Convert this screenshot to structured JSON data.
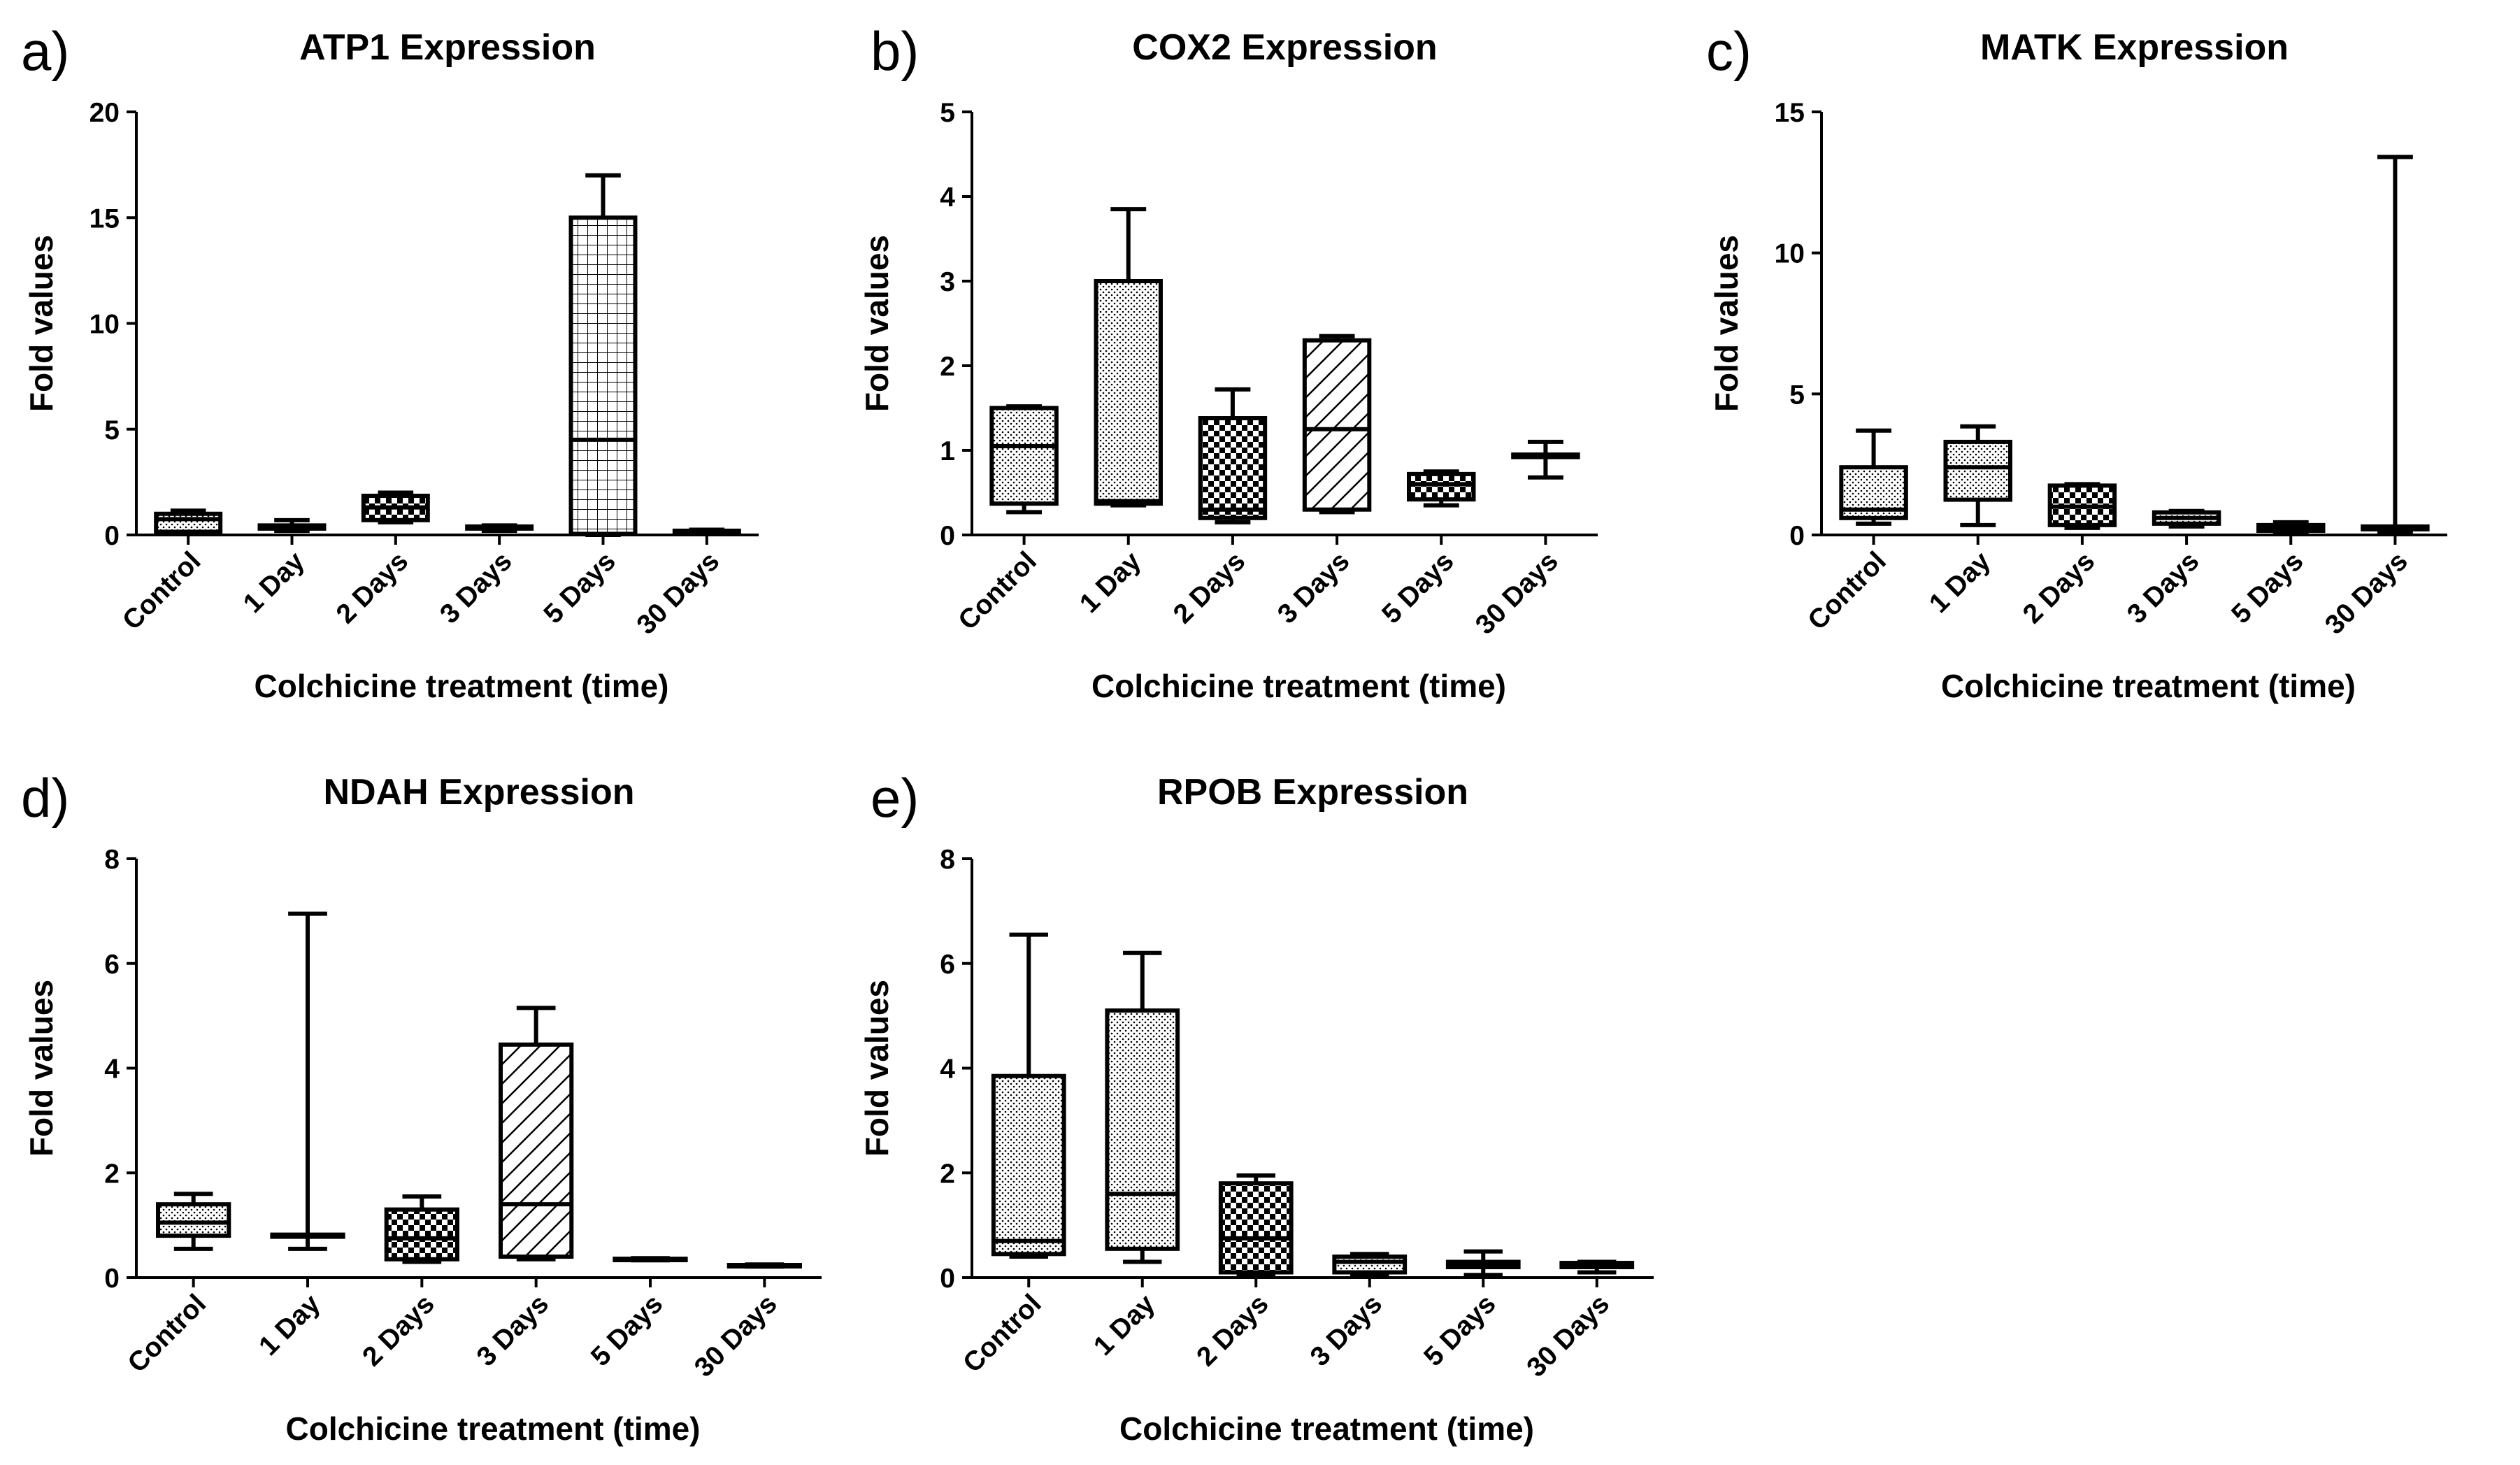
{
  "figure": {
    "kind": "box-and-whisker panel figure"
  },
  "chart_data": [
    {
      "type": "box",
      "letter": "a)",
      "title": "ATP1 Expression",
      "xlabel": "Colchicine treatment (time)",
      "ylabel": "Fold values",
      "ylim": [
        0,
        20
      ],
      "yticks": [
        "0",
        "5",
        "10",
        "15",
        "20"
      ],
      "categories": [
        "Control",
        "1 Day",
        "2 Days",
        "3 Days",
        "5 Days",
        "30 Days"
      ],
      "patterns": [
        "dots",
        "dots",
        "checker",
        "dots",
        "grid",
        "dots"
      ],
      "boxes": [
        {
          "min": 0.05,
          "q1": 0.15,
          "median": 0.75,
          "q3": 1.0,
          "max": 1.15
        },
        {
          "min": 0.2,
          "q1": 0.3,
          "median": 0.35,
          "q3": 0.45,
          "max": 0.7
        },
        {
          "min": 0.6,
          "q1": 0.7,
          "median": 1.3,
          "q3": 1.85,
          "max": 2.0
        },
        {
          "min": 0.2,
          "q1": 0.3,
          "median": 0.35,
          "q3": 0.4,
          "max": 0.45
        },
        {
          "min": 0.0,
          "q1": 0.05,
          "median": 4.5,
          "q3": 15.0,
          "max": 17.0
        },
        {
          "min": 0.05,
          "q1": 0.1,
          "median": 0.15,
          "q3": 0.2,
          "max": 0.25
        }
      ]
    },
    {
      "type": "box",
      "letter": "b)",
      "title": "COX2 Expression",
      "xlabel": "Colchicine treatment (time)",
      "ylabel": "Fold values",
      "ylim": [
        0,
        5
      ],
      "yticks": [
        "0",
        "1",
        "2",
        "3",
        "4",
        "5"
      ],
      "categories": [
        "Control",
        "1 Day",
        "2 Days",
        "3 Days",
        "5 Days",
        "30 Days"
      ],
      "patterns": [
        "dots",
        "dots",
        "checker",
        "hatch",
        "checker",
        "dots"
      ],
      "boxes": [
        {
          "min": 0.27,
          "q1": 0.37,
          "median": 1.05,
          "q3": 1.5,
          "max": 1.52
        },
        {
          "min": 0.35,
          "q1": 0.37,
          "median": 0.4,
          "q3": 3.0,
          "max": 3.85
        },
        {
          "min": 0.15,
          "q1": 0.2,
          "median": 0.3,
          "q3": 1.38,
          "max": 1.72
        },
        {
          "min": 0.27,
          "q1": 0.3,
          "median": 1.25,
          "q3": 2.3,
          "max": 2.35
        },
        {
          "min": 0.35,
          "q1": 0.42,
          "median": 0.6,
          "q3": 0.72,
          "max": 0.75
        },
        {
          "min": 0.68,
          "q1": 0.92,
          "median": 0.93,
          "q3": 0.95,
          "max": 1.1
        }
      ]
    },
    {
      "type": "box",
      "letter": "c)",
      "title": "MATK Expression",
      "xlabel": "Colchicine treatment (time)",
      "ylabel": "Fold values",
      "ylim": [
        0,
        15
      ],
      "yticks": [
        "0",
        "5",
        "10",
        "15"
      ],
      "categories": [
        "Control",
        "1 Day",
        "2 Days",
        "3 Days",
        "5 Days",
        "30 Days"
      ],
      "patterns": [
        "dots",
        "dots",
        "checker",
        "dots",
        "dots",
        "dots"
      ],
      "boxes": [
        {
          "min": 0.4,
          "q1": 0.6,
          "median": 0.9,
          "q3": 2.4,
          "max": 3.7
        },
        {
          "min": 0.35,
          "q1": 1.25,
          "median": 2.4,
          "q3": 3.3,
          "max": 3.85
        },
        {
          "min": 0.25,
          "q1": 0.35,
          "median": 1.0,
          "q3": 1.75,
          "max": 1.8
        },
        {
          "min": 0.3,
          "q1": 0.4,
          "median": 0.6,
          "q3": 0.8,
          "max": 0.85
        },
        {
          "min": 0.1,
          "q1": 0.15,
          "median": 0.25,
          "q3": 0.35,
          "max": 0.45
        },
        {
          "min": 0.1,
          "q1": 0.2,
          "median": 0.25,
          "q3": 0.3,
          "max": 13.4
        }
      ]
    },
    {
      "type": "box",
      "letter": "d)",
      "title": "NDAH Expression",
      "xlabel": "Colchicine treatment (time)",
      "ylabel": "Fold values",
      "ylim": [
        0,
        8
      ],
      "yticks": [
        "0",
        "2",
        "4",
        "6",
        "8"
      ],
      "categories": [
        "Control",
        "1 Day",
        "2 Days",
        "3 Days",
        "5 Days",
        "30 Days"
      ],
      "patterns": [
        "dots",
        "dots",
        "checker",
        "hatch",
        "dots",
        "dots"
      ],
      "boxes": [
        {
          "min": 0.55,
          "q1": 0.8,
          "median": 1.05,
          "q3": 1.4,
          "max": 1.6
        },
        {
          "min": 0.55,
          "q1": 0.78,
          "median": 0.8,
          "q3": 0.82,
          "max": 6.95
        },
        {
          "min": 0.3,
          "q1": 0.35,
          "median": 0.75,
          "q3": 1.3,
          "max": 1.55
        },
        {
          "min": 0.35,
          "q1": 0.4,
          "median": 1.4,
          "q3": 4.45,
          "max": 5.15
        },
        {
          "min": 0.33,
          "q1": 0.34,
          "median": 0.35,
          "q3": 0.36,
          "max": 0.37
        },
        {
          "min": 0.21,
          "q1": 0.22,
          "median": 0.23,
          "q3": 0.24,
          "max": 0.25
        }
      ]
    },
    {
      "type": "box",
      "letter": "e)",
      "title": "RPOB Expression",
      "xlabel": "Colchicine treatment (time)",
      "ylabel": "Fold values",
      "ylim": [
        0,
        8
      ],
      "yticks": [
        "0",
        "2",
        "4",
        "6",
        "8"
      ],
      "categories": [
        "Control",
        "1 Day",
        "2 Days",
        "3 Days",
        "5 Days",
        "30 Days"
      ],
      "patterns": [
        "dots",
        "dots",
        "checker",
        "dots",
        "dots",
        "dots"
      ],
      "boxes": [
        {
          "min": 0.4,
          "q1": 0.45,
          "median": 0.7,
          "q3": 3.85,
          "max": 6.55
        },
        {
          "min": 0.3,
          "q1": 0.55,
          "median": 1.6,
          "q3": 5.1,
          "max": 6.2
        },
        {
          "min": 0.05,
          "q1": 0.1,
          "median": 0.75,
          "q3": 1.8,
          "max": 1.95
        },
        {
          "min": 0.05,
          "q1": 0.1,
          "median": 0.3,
          "q3": 0.4,
          "max": 0.45
        },
        {
          "min": 0.05,
          "q1": 0.2,
          "median": 0.25,
          "q3": 0.3,
          "max": 0.5
        },
        {
          "min": 0.1,
          "q1": 0.2,
          "median": 0.25,
          "q3": 0.28,
          "max": 0.3
        }
      ]
    }
  ]
}
